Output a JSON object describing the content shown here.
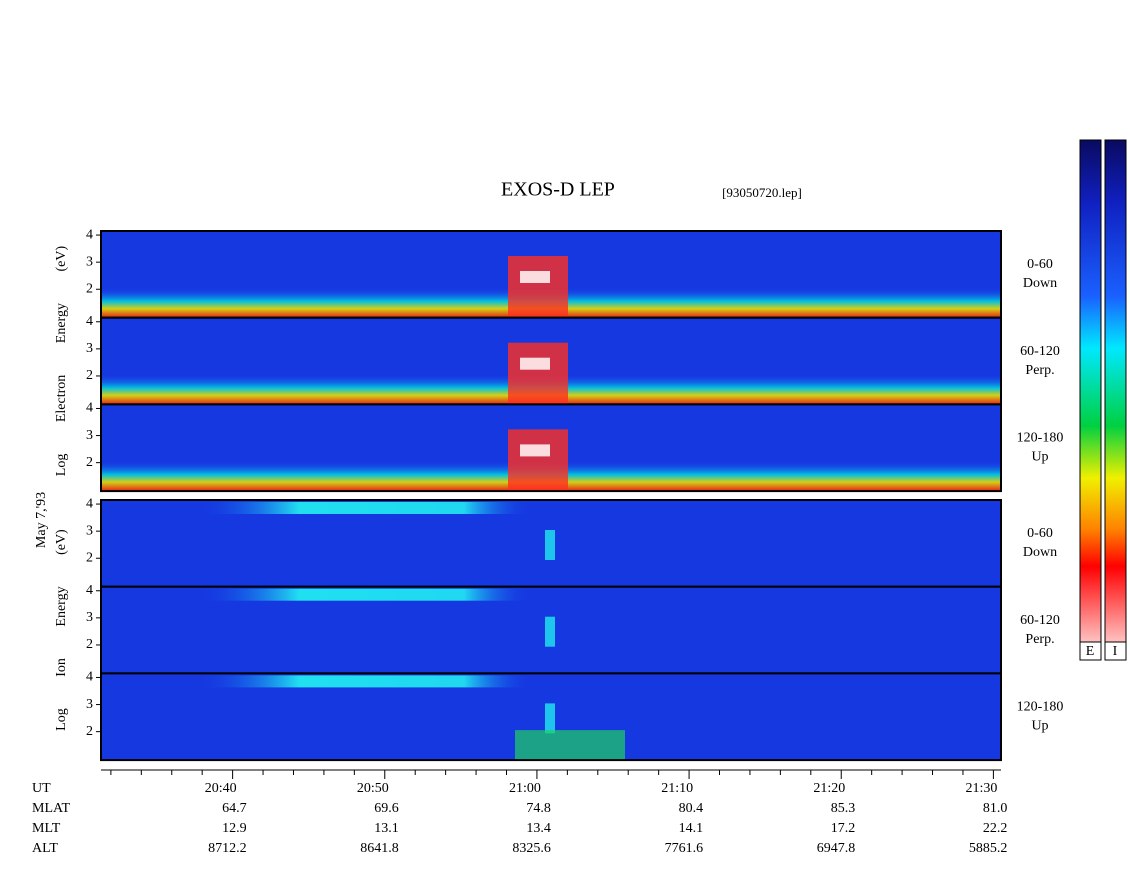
{
  "chart_data": {
    "type": "spectrogram",
    "title": "EXOS-D LEP",
    "file": "[93050720.lep]",
    "date": "May 7,'93",
    "groups": [
      {
        "ylabel": "Log Electron Energy (eV)",
        "panels": [
          {
            "angle": "0-60",
            "direction": "Down"
          },
          {
            "angle": "60-120",
            "direction": "Perp."
          },
          {
            "angle": "120-180",
            "direction": "Up"
          }
        ]
      },
      {
        "ylabel": "Log Ion Energy (eV)",
        "panels": [
          {
            "angle": "0-60",
            "direction": "Down"
          },
          {
            "angle": "60-120",
            "direction": "Perp."
          },
          {
            "angle": "120-180",
            "direction": "Up"
          }
        ]
      }
    ],
    "ylim": [
      0.95,
      4.15
    ],
    "yticks": [
      2,
      3,
      4
    ],
    "xlim": [
      1231.35,
      1290.5
    ],
    "xticks": [
      {
        "value": 1240,
        "label": "20:40"
      },
      {
        "value": 1250,
        "label": "20:50"
      },
      {
        "value": 1260,
        "label": "21:00"
      },
      {
        "value": 1270,
        "label": "21:10"
      },
      {
        "value": 1280,
        "label": "21:20"
      },
      {
        "value": 1290,
        "label": "21:30"
      }
    ],
    "xminorticks": [
      1232,
      1234,
      1236,
      1238,
      1242,
      1244,
      1246,
      1248,
      1252,
      1254,
      1256,
      1258,
      1262,
      1264,
      1266,
      1268,
      1272,
      1274,
      1276,
      1278,
      1282,
      1284,
      1286,
      1288
    ],
    "x_label": "UT",
    "rows": [
      {
        "label": "MLAT",
        "values": [
          "64.7",
          "69.6",
          "74.8",
          "80.4",
          "85.3",
          "81.0"
        ]
      },
      {
        "label": "MLT",
        "values": [
          "12.9",
          "13.1",
          "13.4",
          "14.1",
          "17.2",
          "22.2"
        ]
      },
      {
        "label": "ALT",
        "values": [
          "8712.2",
          "8641.8",
          "8325.6",
          "7761.6",
          "6947.8",
          "5885.2"
        ]
      }
    ],
    "colorbar_labels": [
      "E",
      "I"
    ]
  }
}
